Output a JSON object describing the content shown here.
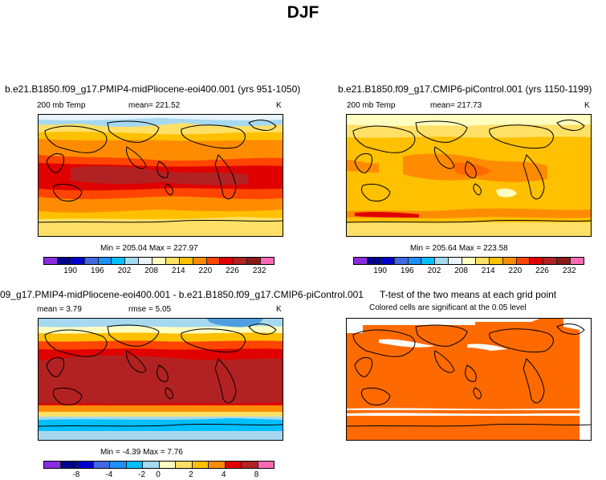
{
  "title": "DJF",
  "panel1": {
    "title": "b.e21.B1850.f09_g17.PMIP4-midPliocene-eoi400.001 (yrs 951-1050)",
    "variable": "200 mb Temp",
    "mean_label": "mean= 221.52",
    "units": "K",
    "minmax": "Min = 205.04  Max = 227.97"
  },
  "panel2": {
    "title": "b.e21.B1850.f09_g17.CMIP6-piControl.001 (yrs 1150-1199)",
    "variable": "200 mb Temp",
    "mean_label": "mean= 217.73",
    "units": "K",
    "minmax": "Min = 205.64  Max = 223.58"
  },
  "panel3": {
    "title": "09_g17.PMIP4-midPliocene-eoi400.001 - b.e21.B1850.f09_g17.CMIP6-piControl.001",
    "mean_label": "mean =   3.79",
    "rmse_label": "rmse =   5.05",
    "units": "K",
    "minmax": "Min =  -4.39  Max =   7.76"
  },
  "panel4": {
    "title": "T-test of the two means at each grid point",
    "subtitle": "Colored cells are significant at the 0.05 level"
  },
  "colorbar_abs": {
    "ticks": [
      "190",
      "196",
      "202",
      "208",
      "214",
      "220",
      "226",
      "232"
    ],
    "colors": [
      "#8a2be2",
      "#00008b",
      "#0000cd",
      "#4169e1",
      "#1e90ff",
      "#00bfff",
      "#a6d8f0",
      "#e8f4fa",
      "#ffffc0",
      "#ffe066",
      "#ffc000",
      "#ff8c00",
      "#ff4500",
      "#e00000",
      "#b22222",
      "#8b1a1a",
      "#ff69b4"
    ]
  },
  "colorbar_diff": {
    "ticks": [
      "-8",
      "-4",
      "-2",
      "0",
      "2",
      "4",
      "8"
    ],
    "colors": [
      "#8a2be2",
      "#00008b",
      "#0000cd",
      "#4169e1",
      "#1e90ff",
      "#00bfff",
      "#a6d8f0",
      "#ffffc0",
      "#ffe066",
      "#ffc000",
      "#ff8c00",
      "#e00000",
      "#b22222",
      "#ff69b4"
    ]
  }
}
